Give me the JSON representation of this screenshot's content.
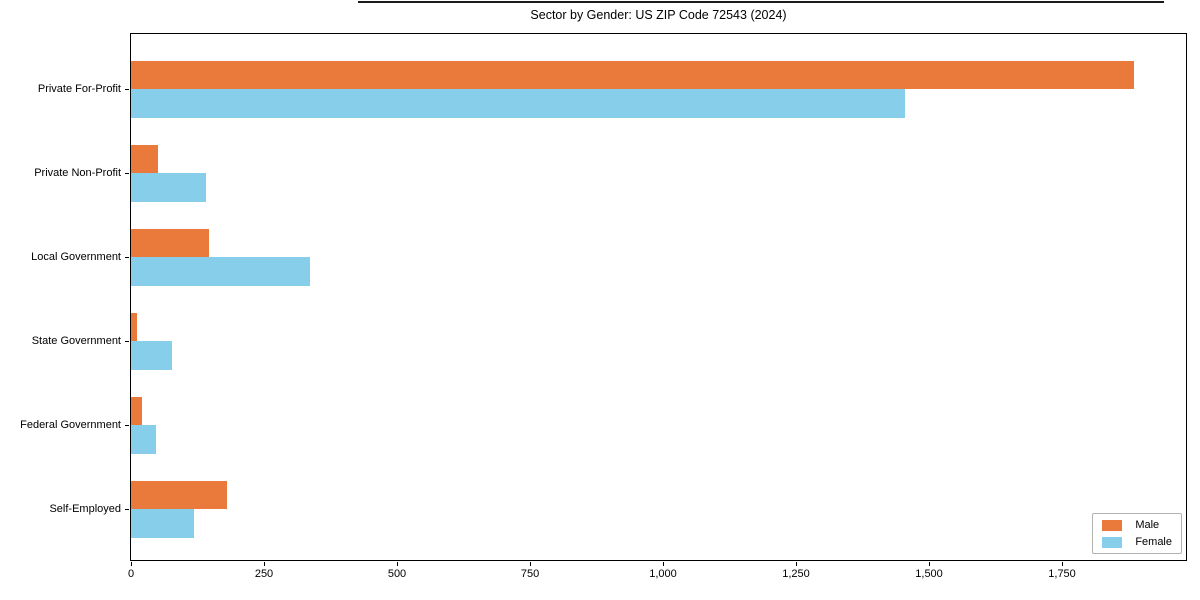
{
  "chart_data": {
    "type": "bar",
    "orientation": "horizontal",
    "title": "Sector by Gender: US ZIP Code 72543 (2024)",
    "categories": [
      "Private For-Profit",
      "Private Non-Profit",
      "Local Government",
      "State Government",
      "Federal Government",
      "Self-Employed"
    ],
    "series": [
      {
        "name": "Male",
        "color": "#e97a3b",
        "values": [
          1885,
          50,
          146,
          11,
          21,
          180
        ]
      },
      {
        "name": "Female",
        "color": "#87ceeb",
        "values": [
          1455,
          141,
          337,
          78,
          47,
          119
        ]
      }
    ],
    "xlim": [
      0,
      1983
    ],
    "x_ticks": [
      0,
      250,
      500,
      750,
      1000,
      1250,
      1500,
      1750
    ],
    "x_tick_labels": [
      "0",
      "250",
      "500",
      "750",
      "1,000",
      "1,250",
      "1,500",
      "1,750"
    ],
    "legend": {
      "position": "lower right",
      "entries": [
        "Male",
        "Female"
      ]
    },
    "grid": false,
    "axis_color": "#000000"
  }
}
